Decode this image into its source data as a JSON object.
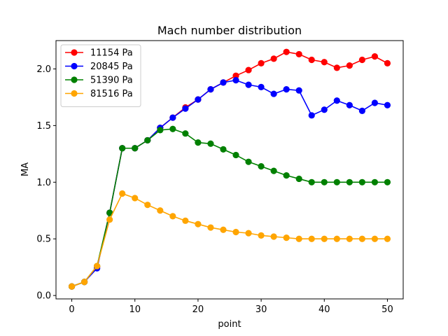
{
  "chart_data": {
    "type": "line",
    "title": "Mach number distribution",
    "xlabel": "point",
    "ylabel": "MA",
    "xlim": [
      -2.5,
      52.5
    ],
    "ylim": [
      -0.03,
      2.25
    ],
    "xticks": [
      0,
      10,
      20,
      30,
      40,
      50
    ],
    "yticks": [
      0.0,
      0.5,
      1.0,
      1.5,
      2.0
    ],
    "xtick_labels": [
      "0",
      "10",
      "20",
      "30",
      "40",
      "50"
    ],
    "ytick_labels": [
      "0.0",
      "0.5",
      "1.0",
      "1.5",
      "2.0"
    ],
    "grid": false,
    "legend_position": "upper-left",
    "x": [
      0,
      2,
      4,
      6,
      8,
      10,
      12,
      14,
      16,
      18,
      20,
      22,
      24,
      26,
      28,
      30,
      32,
      34,
      36,
      38,
      40,
      42,
      44,
      46,
      48,
      50
    ],
    "series": [
      {
        "name": "11154 Pa",
        "color": "#ff0000",
        "values": [
          0.08,
          0.12,
          0.25,
          0.73,
          1.3,
          1.3,
          1.37,
          1.48,
          1.57,
          1.66,
          1.73,
          1.82,
          1.88,
          1.94,
          1.99,
          2.05,
          2.09,
          2.15,
          2.13,
          2.08,
          2.06,
          2.01,
          2.03,
          2.08,
          2.11,
          2.05
        ]
      },
      {
        "name": "20845 Pa",
        "color": "#0000ff",
        "values": [
          0.08,
          0.12,
          0.24,
          0.73,
          1.3,
          1.3,
          1.37,
          1.48,
          1.57,
          1.65,
          1.73,
          1.82,
          1.88,
          1.9,
          1.86,
          1.84,
          1.78,
          1.82,
          1.81,
          1.59,
          1.64,
          1.72,
          1.68,
          1.63,
          1.7,
          1.68
        ]
      },
      {
        "name": "51390 Pa",
        "color": "#008000",
        "values": [
          0.08,
          0.12,
          0.26,
          0.73,
          1.3,
          1.3,
          1.37,
          1.46,
          1.47,
          1.43,
          1.35,
          1.34,
          1.29,
          1.24,
          1.18,
          1.14,
          1.1,
          1.06,
          1.03,
          1.0,
          1.0,
          1.0,
          1.0,
          1.0,
          1.0,
          1.0
        ]
      },
      {
        "name": "81516 Pa",
        "color": "#ffa500",
        "values": [
          0.08,
          0.12,
          0.26,
          0.67,
          0.9,
          0.86,
          0.8,
          0.75,
          0.7,
          0.66,
          0.63,
          0.6,
          0.58,
          0.56,
          0.55,
          0.53,
          0.52,
          0.51,
          0.5,
          0.5,
          0.5,
          0.5,
          0.5,
          0.5,
          0.5,
          0.5
        ]
      }
    ]
  }
}
